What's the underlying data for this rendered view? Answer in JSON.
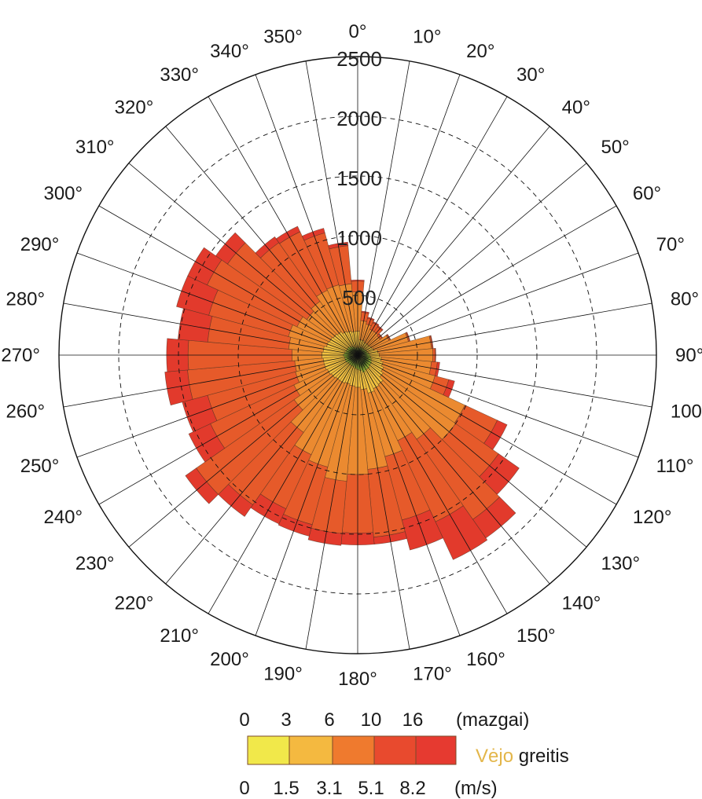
{
  "chart_data": {
    "type": "polar-stacked-bar",
    "angle_tick_labels": [
      "0°",
      "10°",
      "20°",
      "30°",
      "40°",
      "50°",
      "60°",
      "70°",
      "80°",
      "90°",
      "100°",
      "110°",
      "120°",
      "130°",
      "140°",
      "150°",
      "160°",
      "170°",
      "180°",
      "190°",
      "200°",
      "210°",
      "220°",
      "230°",
      "240°",
      "250°",
      "260°",
      "270°",
      "280°",
      "290°",
      "300°",
      "310°",
      "320°",
      "330°",
      "340°",
      "350°"
    ],
    "radial_ticks": [
      500,
      1000,
      1500,
      2000,
      2500
    ],
    "radial_tick_labels": [
      "500",
      "1000",
      "1500",
      "2000",
      "2500"
    ],
    "rmax": 2500,
    "grid": true,
    "directions": [
      0,
      10,
      20,
      30,
      40,
      50,
      60,
      70,
      80,
      90,
      100,
      110,
      120,
      130,
      140,
      150,
      160,
      170,
      180,
      190,
      200,
      210,
      220,
      230,
      240,
      250,
      260,
      270,
      280,
      290,
      300,
      310,
      320,
      330,
      340,
      350
    ],
    "series": [
      {
        "name": "0",
        "values": [
          60,
          60,
          70,
          70,
          70,
          70,
          80,
          80,
          90,
          100,
          110,
          120,
          130,
          130,
          140,
          140,
          150,
          130,
          120,
          110,
          100,
          100,
          100,
          100,
          110,
          110,
          110,
          120,
          110,
          100,
          100,
          100,
          90,
          80,
          70,
          60
        ]
      },
      {
        "name": "1.5",
        "values": [
          140,
          70,
          60,
          50,
          50,
          50,
          50,
          60,
          80,
          80,
          90,
          100,
          110,
          130,
          160,
          170,
          180,
          160,
          150,
          150,
          150,
          160,
          160,
          170,
          170,
          180,
          180,
          180,
          180,
          170,
          160,
          150,
          150,
          140,
          140,
          140
        ]
      },
      {
        "name": "3.1",
        "values": [
          330,
          160,
          140,
          120,
          120,
          110,
          160,
          300,
          450,
          450,
          420,
          450,
          750,
          740,
          560,
          480,
          550,
          670,
          730,
          800,
          720,
          660,
          530,
          380,
          310,
          250,
          240,
          250,
          290,
          330,
          300,
          270,
          310,
          380,
          400,
          400
        ]
      },
      {
        "name": "5.1",
        "values": [
          90,
          70,
          50,
          60,
          50,
          20,
          10,
          10,
          10,
          20,
          50,
          120,
          300,
          440,
          820,
          750,
          550,
          570,
          490,
          440,
          500,
          500,
          740,
          1000,
          770,
          760,
          900,
          870,
          680,
          690,
          830,
          810,
          600,
          540,
          450,
          320
        ]
      },
      {
        "name": "8.2",
        "values": [
          10,
          10,
          10,
          10,
          10,
          5,
          5,
          5,
          5,
          5,
          20,
          50,
          90,
          210,
          190,
          350,
          260,
          60,
          100,
          100,
          100,
          140,
          120,
          110,
          200,
          220,
          190,
          180,
          250,
          280,
          180,
          120,
          60,
          50,
          40,
          30
        ]
      }
    ],
    "legend": {
      "knots_unit": "(mazgai)",
      "knots_labels": [
        "0",
        "3",
        "6",
        "10",
        "16"
      ],
      "ms_unit": "(m/s)",
      "ms_labels": [
        "0",
        "1.5",
        "3.1",
        "5.1",
        "8.2"
      ],
      "title_highlight": "Vėjo",
      "title_rest": " greitis",
      "placement": "bottom-center",
      "colors": [
        "#f1e84a",
        "#f4b940",
        "#ef7a2e",
        "#e84a2e",
        "#e63a30"
      ]
    },
    "inner_colors": [
      "#1f3a1a",
      "#9fc436"
    ],
    "series_colors": [
      "#f0e04a",
      "#f0c040",
      "#eb8a30",
      "#e65a2a",
      "#e23a2c"
    ]
  }
}
